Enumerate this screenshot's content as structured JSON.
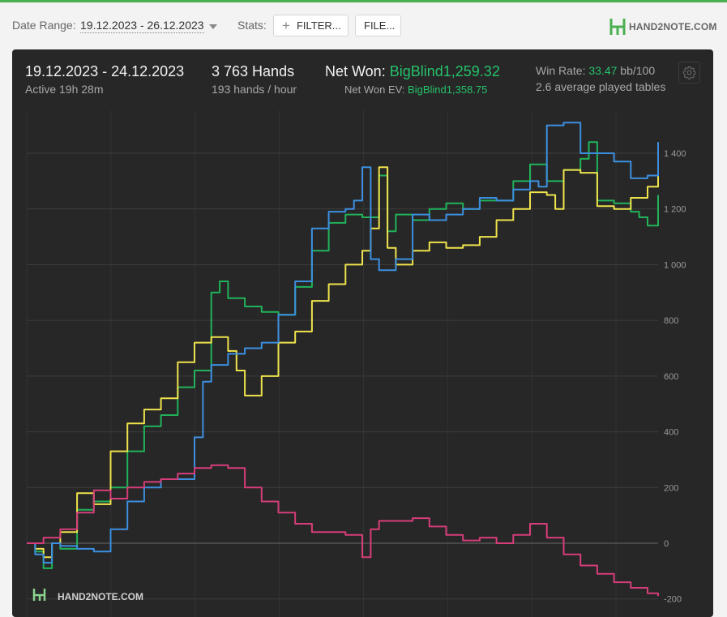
{
  "toolbar": {
    "date_range_label": "Date Range:",
    "date_range_value": "19.12.2023 - 26.12.2023",
    "stats_label": "Stats:",
    "filter_button": "FILTER...",
    "file_button": "FILE...",
    "logo_text": "HAND2NOTE.COM"
  },
  "summary": {
    "period": "19.12.2023 - 24.12.2023",
    "active": "Active 19h 28m",
    "hands": "3 763 Hands",
    "hands_per_hour": "193 hands / hour",
    "net_won_label": "Net Won:",
    "net_won_value": "BigBlind1,259.32",
    "net_won_ev_label": "Net Won  EV:",
    "net_won_ev_value": "BigBlind1,358.75",
    "win_rate_label": "Win Rate:",
    "win_rate_value": "33.47",
    "win_rate_unit": "bb/100",
    "avg_tables": "2.6 average played tables"
  },
  "watermark": "HAND2NOTE.COM",
  "colors": {
    "accent_green": "#25c26a",
    "panel_bg": "#272727",
    "series_green": "#21b35a",
    "series_yellow": "#efe34c",
    "series_blue": "#3c8fe0",
    "series_pink": "#d63d7a"
  },
  "icons": [
    "plus-icon",
    "gear-icon",
    "hand2note-logo-icon"
  ],
  "chart_data": {
    "type": "line",
    "title": "",
    "xlabel": "",
    "ylabel": "",
    "ylim": [
      -200,
      1550
    ],
    "y_ticks": [
      -200,
      0,
      200,
      400,
      600,
      800,
      1000,
      1200,
      1400
    ],
    "y_tick_labels": [
      "-200",
      "0",
      "200",
      "400",
      "600",
      "800",
      "1 000",
      "1 200",
      "1 400"
    ],
    "x_range": [
      0,
      3763
    ],
    "grid": true,
    "series": [
      {
        "color": "#21b35a",
        "x": [
          0,
          50,
          100,
          150,
          200,
          300,
          400,
          500,
          600,
          700,
          800,
          900,
          1000,
          1100,
          1150,
          1200,
          1300,
          1400,
          1500,
          1600,
          1700,
          1800,
          1900,
          2000,
          2100,
          2150,
          2200,
          2300,
          2400,
          2500,
          2600,
          2700,
          2800,
          2900,
          3000,
          3100,
          3200,
          3300,
          3350,
          3400,
          3500,
          3600,
          3650,
          3700,
          3763
        ],
        "y": [
          0,
          -30,
          -90,
          0,
          -20,
          120,
          150,
          200,
          330,
          420,
          460,
          560,
          620,
          900,
          940,
          880,
          850,
          830,
          820,
          920,
          1050,
          1150,
          1180,
          1170,
          1320,
          1120,
          1180,
          1160,
          1200,
          1220,
          1200,
          1230,
          1230,
          1300,
          1360,
          1300,
          1340,
          1380,
          1440,
          1230,
          1220,
          1190,
          1170,
          1140,
          1250
        ]
      },
      {
        "color": "#efe34c",
        "x": [
          0,
          50,
          100,
          150,
          200,
          300,
          400,
          500,
          600,
          700,
          800,
          900,
          1000,
          1100,
          1200,
          1250,
          1300,
          1400,
          1500,
          1600,
          1700,
          1800,
          1900,
          2000,
          2050,
          2100,
          2150,
          2200,
          2300,
          2400,
          2500,
          2600,
          2700,
          2800,
          2900,
          3000,
          3100,
          3150,
          3200,
          3300,
          3400,
          3500,
          3600,
          3700,
          3763
        ],
        "y": [
          0,
          -20,
          -50,
          0,
          40,
          180,
          140,
          330,
          430,
          480,
          520,
          650,
          720,
          740,
          690,
          620,
          530,
          600,
          720,
          760,
          870,
          930,
          1000,
          1050,
          1130,
          1350,
          1060,
          1000,
          1050,
          1080,
          1060,
          1070,
          1100,
          1160,
          1200,
          1260,
          1250,
          1200,
          1340,
          1330,
          1210,
          1200,
          1240,
          1280,
          1370
        ]
      },
      {
        "color": "#3c8fe0",
        "x": [
          0,
          50,
          100,
          150,
          200,
          300,
          400,
          450,
          500,
          600,
          700,
          800,
          900,
          1000,
          1050,
          1100,
          1200,
          1300,
          1400,
          1500,
          1600,
          1700,
          1800,
          1900,
          1950,
          2000,
          2050,
          2100,
          2200,
          2300,
          2400,
          2500,
          2600,
          2700,
          2800,
          2900,
          3000,
          3050,
          3100,
          3200,
          3300,
          3400,
          3500,
          3600,
          3700,
          3763
        ],
        "y": [
          0,
          -40,
          -70,
          0,
          -10,
          -20,
          -30,
          -30,
          50,
          150,
          200,
          230,
          230,
          380,
          580,
          640,
          680,
          700,
          720,
          820,
          940,
          1130,
          1190,
          1200,
          1230,
          1350,
          1020,
          980,
          1020,
          1180,
          1160,
          1180,
          1200,
          1240,
          1230,
          1270,
          1300,
          1280,
          1500,
          1510,
          1400,
          1400,
          1370,
          1310,
          1320,
          1440
        ]
      },
      {
        "color": "#d63d7a",
        "x": [
          0,
          100,
          200,
          300,
          400,
          500,
          600,
          700,
          800,
          900,
          1000,
          1100,
          1200,
          1300,
          1400,
          1500,
          1600,
          1700,
          1800,
          1900,
          2000,
          2050,
          2100,
          2200,
          2300,
          2400,
          2500,
          2600,
          2700,
          2800,
          2900,
          3000,
          3100,
          3200,
          3300,
          3400,
          3500,
          3600,
          3700,
          3763
        ],
        "y": [
          0,
          20,
          50,
          110,
          190,
          160,
          200,
          220,
          230,
          250,
          270,
          280,
          270,
          200,
          150,
          110,
          70,
          40,
          40,
          30,
          -50,
          50,
          80,
          80,
          90,
          60,
          30,
          10,
          20,
          0,
          30,
          70,
          20,
          -40,
          -80,
          -110,
          -140,
          -160,
          -180,
          -190
        ]
      }
    ]
  }
}
